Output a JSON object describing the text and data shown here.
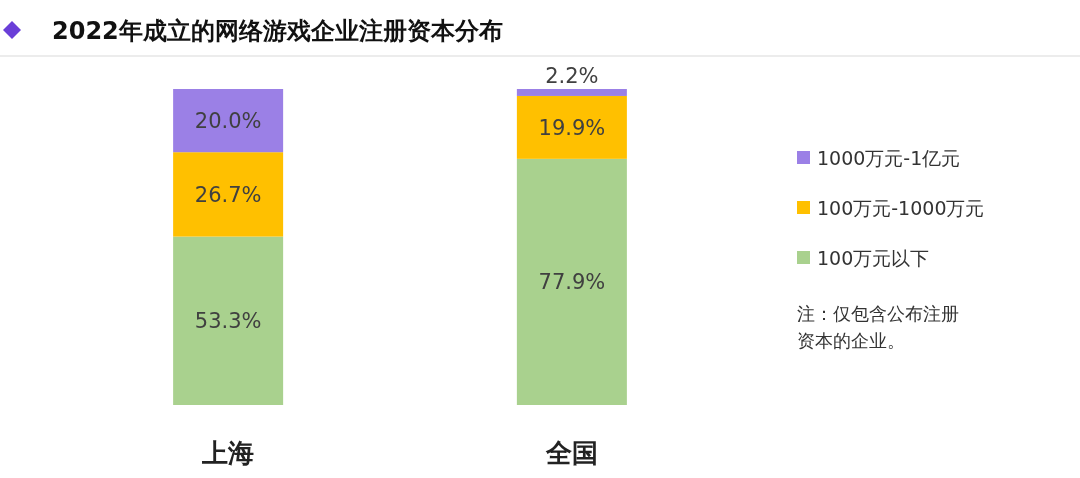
{
  "chart_data": {
    "type": "bar",
    "title": "2022年成立的网络游戏企业注册资本分布",
    "categories": [
      "上海",
      "全国"
    ],
    "stacked": true,
    "legend": "right",
    "series": [
      {
        "name": "100万元以下",
        "color": "#a9d18e",
        "values": [
          53.3,
          77.9
        ],
        "value_labels": [
          "53.3%",
          "77.9%"
        ]
      },
      {
        "name": "100万元-1000万元",
        "color": "#ffc000",
        "values": [
          26.7,
          19.9
        ],
        "value_labels": [
          "26.7%",
          "19.9%"
        ]
      },
      {
        "name": "1000万元-1亿元",
        "color": "#9b80e6",
        "values": [
          20.0,
          2.2
        ],
        "value_labels": [
          "20.0%",
          "2.2%"
        ]
      }
    ],
    "annotations": [
      "注：仅包含公布注册资本的企业。"
    ]
  }
}
